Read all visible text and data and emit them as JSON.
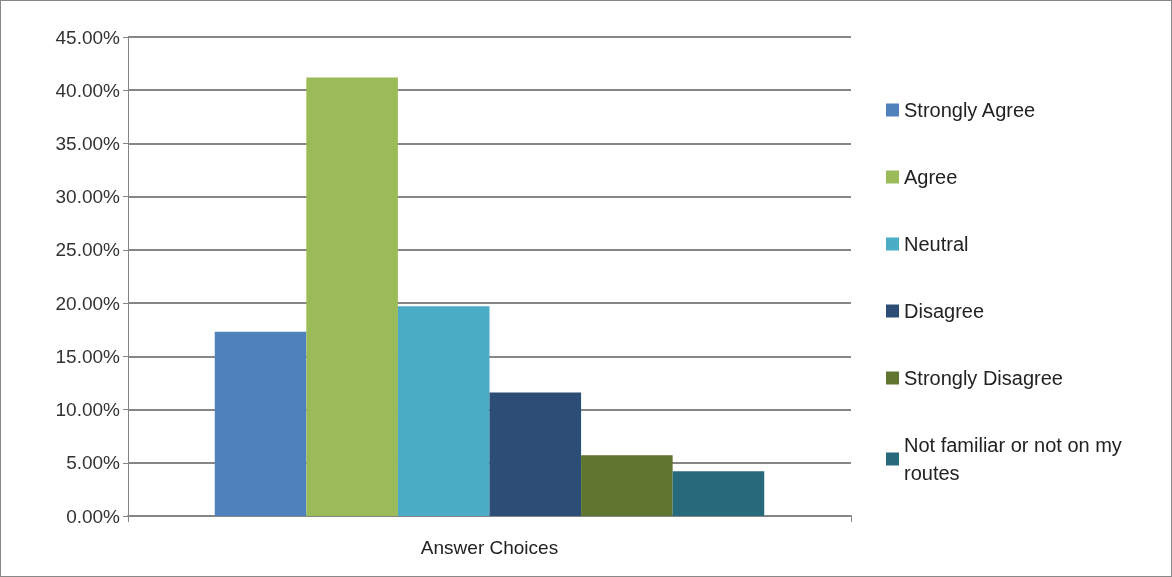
{
  "chart_data": {
    "type": "bar",
    "categories": [
      "Answer Choices"
    ],
    "series": [
      {
        "name": "Strongly Agree",
        "color": "#4f81bd",
        "values": [
          17.3
        ]
      },
      {
        "name": "Agree",
        "color": "#9bbb59",
        "values": [
          41.2
        ]
      },
      {
        "name": "Neutral",
        "color": "#4bacc6",
        "values": [
          19.7
        ]
      },
      {
        "name": "Disagree",
        "color": "#2c4d75",
        "values": [
          11.6
        ]
      },
      {
        "name": "Strongly Disagree",
        "color": "#5f7530",
        "values": [
          5.7
        ]
      },
      {
        "name": "Not familiar or not on my routes",
        "color": "#276a7c",
        "values": [
          4.2
        ]
      }
    ],
    "ylim": [
      0,
      45
    ],
    "yticks": [
      {
        "value": 0,
        "label": "0.00%"
      },
      {
        "value": 5,
        "label": "5.00%"
      },
      {
        "value": 10,
        "label": "10.00%"
      },
      {
        "value": 15,
        "label": "15.00%"
      },
      {
        "value": 20,
        "label": "20.00%"
      },
      {
        "value": 25,
        "label": "25.00%"
      },
      {
        "value": 30,
        "label": "30.00%"
      },
      {
        "value": 35,
        "label": "35.00%"
      },
      {
        "value": 40,
        "label": "40.00%"
      },
      {
        "value": 45,
        "label": "45.00%"
      }
    ],
    "grid": "y",
    "legend": "right"
  }
}
